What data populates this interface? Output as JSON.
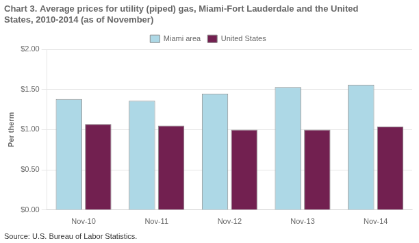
{
  "chart_data": {
    "type": "bar",
    "title": "Chart 3. Average prices for utility (piped) gas, Miami-Fort Lauderdale and the United\nStates, 2010-2014 (as of November)",
    "ylabel": "Per therm",
    "source": "Source: U.S. Bureau of Labor Statistics.",
    "categories": [
      "Nov-10",
      "Nov-11",
      "Nov-12",
      "Nov-13",
      "Nov-14"
    ],
    "series": [
      {
        "name": "Miami area",
        "color": "#add8e6",
        "values": [
          1.38,
          1.36,
          1.45,
          1.53,
          1.56
        ]
      },
      {
        "name": "United States",
        "color": "#722050",
        "values": [
          1.07,
          1.05,
          1.0,
          1.0,
          1.04
        ]
      }
    ],
    "ylim": [
      0.0,
      2.0
    ],
    "yticks": [
      {
        "value": 0.0,
        "label": "$0.00"
      },
      {
        "value": 0.5,
        "label": "$0.50"
      },
      {
        "value": 1.0,
        "label": "$1.00"
      },
      {
        "value": 1.5,
        "label": "$1.50"
      },
      {
        "value": 2.0,
        "label": "$2.00"
      }
    ],
    "grid": true,
    "legend": "top"
  }
}
